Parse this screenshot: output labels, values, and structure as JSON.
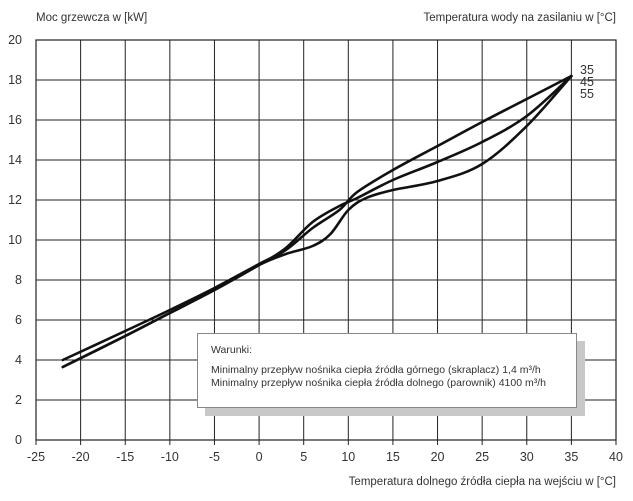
{
  "chart_data": {
    "type": "line",
    "ylabel": "Moc grzewcza w [kW]",
    "series_title": "Temperatura wody na zasilaniu w [°C]",
    "xlabel": "Temperatura dolnego źródła ciepła na wejściu w [°C]",
    "xlim": [
      -25,
      40
    ],
    "ylim": [
      0,
      20
    ],
    "xticks": [
      -25,
      -20,
      -15,
      -10,
      -5,
      0,
      5,
      10,
      15,
      20,
      25,
      30,
      35,
      40
    ],
    "yticks": [
      0,
      2,
      4,
      6,
      8,
      10,
      12,
      14,
      16,
      18,
      20
    ],
    "grid": true,
    "series": [
      {
        "name": "35",
        "x": [
          -22,
          -15,
          -10,
          -5,
          0,
          3,
          6,
          9,
          11,
          15,
          20,
          25,
          30,
          35
        ],
        "y": [
          4.0,
          5.45,
          6.5,
          7.6,
          8.8,
          9.5,
          10.6,
          11.5,
          12.4,
          13.5,
          14.7,
          15.9,
          17.05,
          18.2
        ]
      },
      {
        "name": "45",
        "x": [
          -22,
          -15,
          -10,
          -5,
          0,
          3,
          6,
          9,
          11,
          15,
          20,
          25,
          30,
          35
        ],
        "y": [
          3.65,
          5.2,
          6.35,
          7.5,
          8.75,
          9.6,
          10.9,
          11.7,
          12.1,
          13.0,
          13.9,
          14.9,
          16.2,
          18.2
        ]
      },
      {
        "name": "55",
        "x": [
          -22,
          -15,
          -10,
          -5,
          0,
          3,
          6,
          8,
          10,
          12,
          15,
          20,
          25,
          30,
          35
        ],
        "y": [
          3.65,
          5.2,
          6.35,
          7.5,
          8.75,
          9.3,
          9.7,
          10.3,
          11.5,
          12.1,
          12.5,
          12.95,
          13.8,
          15.7,
          18.2
        ]
      }
    ]
  },
  "note": {
    "title": "Warunki:",
    "line1": "Minimalny przepływ nośnika ciepła źródła górnego (skraplacz) 1,4 m³/h",
    "line2": "Minimalny przepływ nośnika ciepła źródła dolnego (parownik) 4100 m³/h"
  }
}
